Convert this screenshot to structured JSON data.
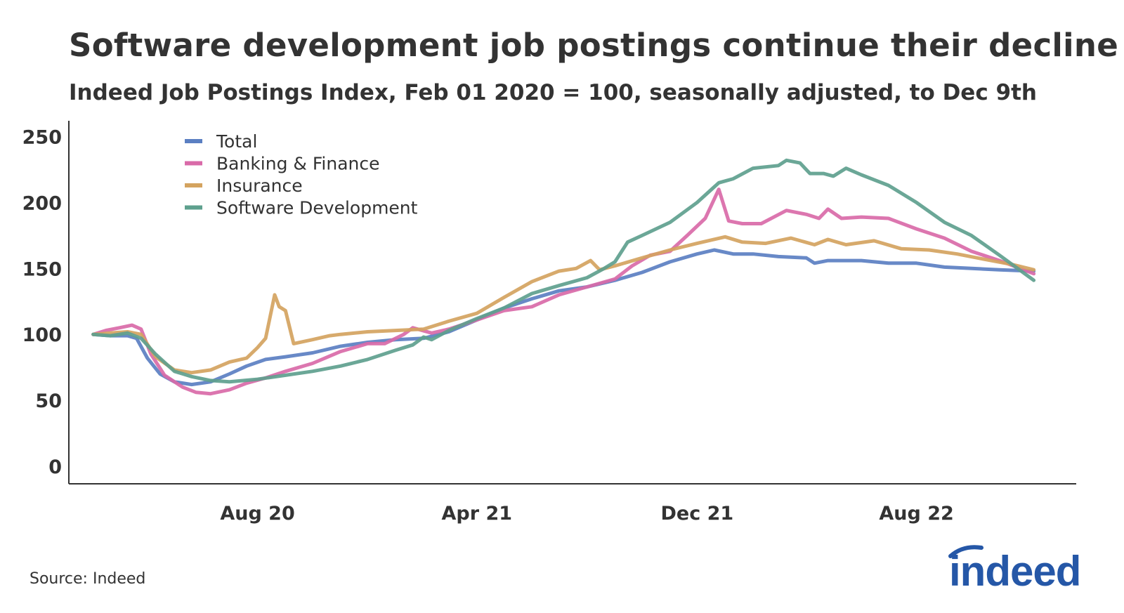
{
  "title": "Software development job postings continue their decline",
  "subtitle": "Indeed Job Postings Index, Feb 01 2020 = 100, seasonally adjusted, to Dec 9th",
  "source": "Source: Indeed",
  "logo_text": "indeed",
  "chart_data": {
    "type": "line",
    "ylim": [
      0,
      262
    ],
    "yticks": [
      0,
      50,
      100,
      150,
      200,
      250
    ],
    "xlim": [
      "2020-01-05",
      "2023-01-25"
    ],
    "xticks": [
      {
        "date": "2020-08-01",
        "label": "Aug 20"
      },
      {
        "date": "2021-04-01",
        "label": "Apr 21"
      },
      {
        "date": "2021-12-01",
        "label": "Dec 21"
      },
      {
        "date": "2022-08-01",
        "label": "Aug 22"
      }
    ],
    "grid": false,
    "legend_position": "top-left",
    "series": [
      {
        "name": "Total",
        "color": "#5b7fc2",
        "points": [
          [
            "2020-02-01",
            100
          ],
          [
            "2020-02-20",
            99
          ],
          [
            "2020-03-10",
            99
          ],
          [
            "2020-03-20",
            97
          ],
          [
            "2020-04-01",
            82
          ],
          [
            "2020-04-15",
            70
          ],
          [
            "2020-05-01",
            64
          ],
          [
            "2020-05-20",
            62
          ],
          [
            "2020-06-10",
            64
          ],
          [
            "2020-07-01",
            70
          ],
          [
            "2020-07-20",
            76
          ],
          [
            "2020-08-10",
            81
          ],
          [
            "2020-09-01",
            83
          ],
          [
            "2020-10-01",
            86
          ],
          [
            "2020-11-01",
            91
          ],
          [
            "2020-12-01",
            94
          ],
          [
            "2021-01-01",
            96
          ],
          [
            "2021-02-01",
            97
          ],
          [
            "2021-03-01",
            102
          ],
          [
            "2021-04-01",
            111
          ],
          [
            "2021-05-01",
            120
          ],
          [
            "2021-06-01",
            127
          ],
          [
            "2021-07-01",
            133
          ],
          [
            "2021-08-01",
            136
          ],
          [
            "2021-09-01",
            141
          ],
          [
            "2021-10-01",
            147
          ],
          [
            "2021-11-01",
            155
          ],
          [
            "2021-12-01",
            161
          ],
          [
            "2021-12-20",
            164
          ],
          [
            "2022-01-10",
            161
          ],
          [
            "2022-02-01",
            161
          ],
          [
            "2022-03-01",
            159
          ],
          [
            "2022-04-01",
            158
          ],
          [
            "2022-04-10",
            154
          ],
          [
            "2022-04-25",
            156
          ],
          [
            "2022-06-01",
            156
          ],
          [
            "2022-07-01",
            154
          ],
          [
            "2022-08-01",
            154
          ],
          [
            "2022-09-01",
            151
          ],
          [
            "2022-10-01",
            150
          ],
          [
            "2022-11-01",
            149
          ],
          [
            "2022-12-09",
            148
          ]
        ]
      },
      {
        "name": "Banking & Finance",
        "color": "#d96aa8",
        "points": [
          [
            "2020-02-01",
            100
          ],
          [
            "2020-02-15",
            103
          ],
          [
            "2020-03-01",
            105
          ],
          [
            "2020-03-15",
            107
          ],
          [
            "2020-03-25",
            104
          ],
          [
            "2020-04-05",
            85
          ],
          [
            "2020-04-20",
            69
          ],
          [
            "2020-05-10",
            60
          ],
          [
            "2020-05-25",
            56
          ],
          [
            "2020-06-10",
            55
          ],
          [
            "2020-07-01",
            58
          ],
          [
            "2020-07-20",
            63
          ],
          [
            "2020-08-10",
            67
          ],
          [
            "2020-09-01",
            72
          ],
          [
            "2020-10-01",
            78
          ],
          [
            "2020-11-01",
            87
          ],
          [
            "2020-12-01",
            93
          ],
          [
            "2020-12-20",
            93
          ],
          [
            "2021-01-10",
            100
          ],
          [
            "2021-01-20",
            105
          ],
          [
            "2021-02-10",
            101
          ],
          [
            "2021-03-01",
            104
          ],
          [
            "2021-04-01",
            111
          ],
          [
            "2021-05-01",
            118
          ],
          [
            "2021-06-01",
            121
          ],
          [
            "2021-07-01",
            130
          ],
          [
            "2021-08-01",
            136
          ],
          [
            "2021-09-01",
            142
          ],
          [
            "2021-09-20",
            152
          ],
          [
            "2021-10-10",
            160
          ],
          [
            "2021-11-01",
            163
          ],
          [
            "2021-11-20",
            175
          ],
          [
            "2021-12-10",
            188
          ],
          [
            "2021-12-25",
            210
          ],
          [
            "2022-01-05",
            186
          ],
          [
            "2022-01-20",
            184
          ],
          [
            "2022-02-10",
            184
          ],
          [
            "2022-03-10",
            194
          ],
          [
            "2022-04-01",
            191
          ],
          [
            "2022-04-15",
            188
          ],
          [
            "2022-04-25",
            195
          ],
          [
            "2022-05-10",
            188
          ],
          [
            "2022-06-01",
            189
          ],
          [
            "2022-07-01",
            188
          ],
          [
            "2022-08-01",
            180
          ],
          [
            "2022-09-01",
            173
          ],
          [
            "2022-10-01",
            163
          ],
          [
            "2022-11-01",
            156
          ],
          [
            "2022-12-09",
            146
          ]
        ]
      },
      {
        "name": "Insurance",
        "color": "#d4a35f",
        "points": [
          [
            "2020-02-01",
            100
          ],
          [
            "2020-02-20",
            101
          ],
          [
            "2020-03-10",
            102
          ],
          [
            "2020-03-25",
            100
          ],
          [
            "2020-04-10",
            83
          ],
          [
            "2020-05-01",
            73
          ],
          [
            "2020-05-20",
            71
          ],
          [
            "2020-06-10",
            73
          ],
          [
            "2020-07-01",
            79
          ],
          [
            "2020-07-20",
            82
          ],
          [
            "2020-08-01",
            90
          ],
          [
            "2020-08-10",
            97
          ],
          [
            "2020-08-20",
            130
          ],
          [
            "2020-08-25",
            121
          ],
          [
            "2020-09-01",
            118
          ],
          [
            "2020-09-10",
            93
          ],
          [
            "2020-10-01",
            96
          ],
          [
            "2020-10-20",
            99
          ],
          [
            "2020-11-01",
            100
          ],
          [
            "2020-12-01",
            102
          ],
          [
            "2021-01-01",
            103
          ],
          [
            "2021-02-01",
            104
          ],
          [
            "2021-03-01",
            110
          ],
          [
            "2021-04-01",
            116
          ],
          [
            "2021-05-01",
            128
          ],
          [
            "2021-06-01",
            140
          ],
          [
            "2021-07-01",
            148
          ],
          [
            "2021-07-20",
            150
          ],
          [
            "2021-08-05",
            156
          ],
          [
            "2021-08-15",
            149
          ],
          [
            "2021-09-01",
            152
          ],
          [
            "2021-10-01",
            158
          ],
          [
            "2021-11-01",
            164
          ],
          [
            "2021-12-01",
            169
          ],
          [
            "2022-01-01",
            174
          ],
          [
            "2022-01-20",
            170
          ],
          [
            "2022-02-15",
            169
          ],
          [
            "2022-03-15",
            173
          ],
          [
            "2022-04-10",
            168
          ],
          [
            "2022-04-25",
            172
          ],
          [
            "2022-05-15",
            168
          ],
          [
            "2022-06-15",
            171
          ],
          [
            "2022-07-15",
            165
          ],
          [
            "2022-08-15",
            164
          ],
          [
            "2022-09-15",
            161
          ],
          [
            "2022-10-15",
            157
          ],
          [
            "2022-11-15",
            153
          ],
          [
            "2022-12-09",
            149
          ]
        ]
      },
      {
        "name": "Software Development",
        "color": "#5ea08e",
        "points": [
          [
            "2020-02-01",
            100
          ],
          [
            "2020-02-20",
            99
          ],
          [
            "2020-03-10",
            101
          ],
          [
            "2020-03-25",
            97
          ],
          [
            "2020-04-10",
            85
          ],
          [
            "2020-05-01",
            72
          ],
          [
            "2020-05-20",
            68
          ],
          [
            "2020-06-10",
            65
          ],
          [
            "2020-07-01",
            64
          ],
          [
            "2020-08-01",
            66
          ],
          [
            "2020-09-01",
            69
          ],
          [
            "2020-10-01",
            72
          ],
          [
            "2020-11-01",
            76
          ],
          [
            "2020-12-01",
            81
          ],
          [
            "2021-01-01",
            88
          ],
          [
            "2021-01-20",
            92
          ],
          [
            "2021-02-01",
            98
          ],
          [
            "2021-02-10",
            96
          ],
          [
            "2021-03-01",
            103
          ],
          [
            "2021-04-01",
            112
          ],
          [
            "2021-05-01",
            120
          ],
          [
            "2021-06-01",
            131
          ],
          [
            "2021-07-01",
            137
          ],
          [
            "2021-08-01",
            143
          ],
          [
            "2021-08-20",
            150
          ],
          [
            "2021-09-01",
            155
          ],
          [
            "2021-09-15",
            170
          ],
          [
            "2021-10-01",
            175
          ],
          [
            "2021-11-01",
            185
          ],
          [
            "2021-12-01",
            200
          ],
          [
            "2021-12-25",
            215
          ],
          [
            "2022-01-10",
            218
          ],
          [
            "2022-02-01",
            226
          ],
          [
            "2022-03-01",
            228
          ],
          [
            "2022-03-10",
            232
          ],
          [
            "2022-03-25",
            230
          ],
          [
            "2022-04-05",
            222
          ],
          [
            "2022-04-20",
            222
          ],
          [
            "2022-05-01",
            220
          ],
          [
            "2022-05-15",
            226
          ],
          [
            "2022-06-01",
            221
          ],
          [
            "2022-07-01",
            213
          ],
          [
            "2022-08-01",
            200
          ],
          [
            "2022-09-01",
            185
          ],
          [
            "2022-10-01",
            175
          ],
          [
            "2022-11-01",
            160
          ],
          [
            "2022-12-09",
            141
          ]
        ]
      }
    ]
  }
}
